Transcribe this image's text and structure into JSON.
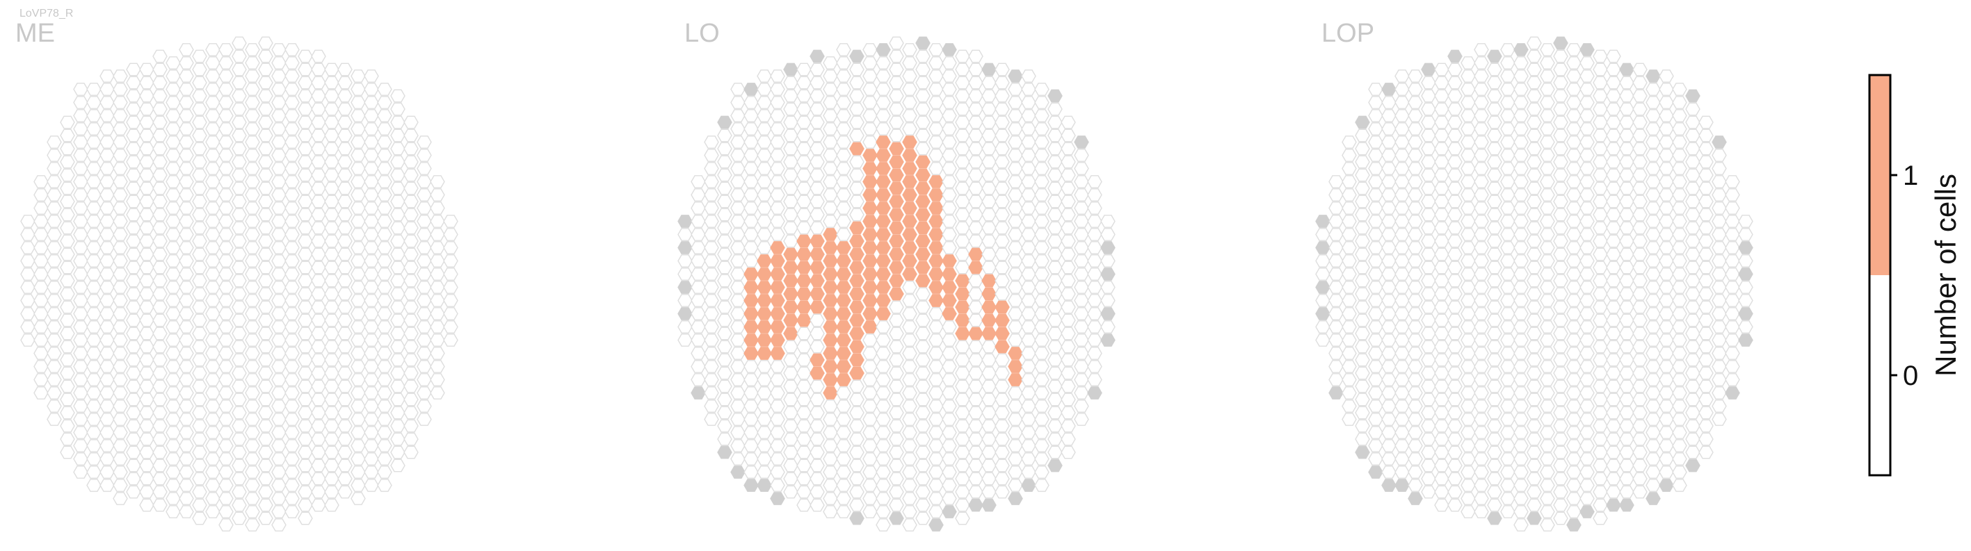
{
  "chart_data": {
    "type": "heatmap",
    "layout": "hexagonal-columns",
    "cell_type": "LoVP78_R",
    "panels": [
      {
        "name": "ME",
        "columns_profile": [
          10,
          17,
          22,
          26,
          30,
          31,
          32,
          33,
          33,
          34,
          35,
          35,
          36,
          36,
          36,
          37,
          37,
          37,
          37,
          37,
          36,
          36,
          35,
          34,
          33,
          33,
          32,
          31,
          29,
          26,
          22,
          17,
          10
        ],
        "max_valued_columns": [],
        "boundary_columns": []
      },
      {
        "name": "LO",
        "columns_profile": [
          10,
          17,
          22,
          26,
          30,
          31,
          32,
          33,
          33,
          34,
          35,
          35,
          36,
          36,
          36,
          37,
          37,
          37,
          37,
          37,
          36,
          36,
          35,
          34,
          33,
          33,
          32,
          31,
          29,
          26,
          22,
          17,
          10
        ],
        "max_valued_columns": [
          [
            5,
            14
          ],
          [
            5,
            15
          ],
          [
            5,
            16
          ],
          [
            5,
            17
          ],
          [
            5,
            18
          ],
          [
            5,
            19
          ],
          [
            5,
            20
          ],
          [
            6,
            14
          ],
          [
            6,
            15
          ],
          [
            6,
            16
          ],
          [
            6,
            17
          ],
          [
            6,
            18
          ],
          [
            6,
            19
          ],
          [
            6,
            20
          ],
          [
            6,
            21
          ],
          [
            7,
            13
          ],
          [
            7,
            14
          ],
          [
            7,
            15
          ],
          [
            7,
            16
          ],
          [
            7,
            17
          ],
          [
            7,
            18
          ],
          [
            7,
            19
          ],
          [
            7,
            20
          ],
          [
            7,
            21
          ],
          [
            8,
            14
          ],
          [
            8,
            15
          ],
          [
            8,
            16
          ],
          [
            8,
            17
          ],
          [
            8,
            18
          ],
          [
            8,
            19
          ],
          [
            8,
            20
          ],
          [
            9,
            13
          ],
          [
            9,
            14
          ],
          [
            9,
            15
          ],
          [
            9,
            16
          ],
          [
            9,
            17
          ],
          [
            9,
            18
          ],
          [
            9,
            19
          ],
          [
            10,
            14
          ],
          [
            10,
            15
          ],
          [
            10,
            16
          ],
          [
            10,
            17
          ],
          [
            10,
            18
          ],
          [
            10,
            19
          ],
          [
            10,
            23
          ],
          [
            10,
            24
          ],
          [
            11,
            13
          ],
          [
            11,
            14
          ],
          [
            11,
            15
          ],
          [
            11,
            16
          ],
          [
            11,
            17
          ],
          [
            11,
            18
          ],
          [
            11,
            19
          ],
          [
            11,
            20
          ],
          [
            11,
            21
          ],
          [
            11,
            22
          ],
          [
            11,
            23
          ],
          [
            11,
            24
          ],
          [
            11,
            25
          ],
          [
            12,
            15
          ],
          [
            12,
            16
          ],
          [
            12,
            17
          ],
          [
            12,
            18
          ],
          [
            12,
            19
          ],
          [
            12,
            20
          ],
          [
            12,
            21
          ],
          [
            12,
            22
          ],
          [
            12,
            23
          ],
          [
            12,
            24
          ],
          [
            12,
            25
          ],
          [
            13,
            7
          ],
          [
            13,
            13
          ],
          [
            13,
            14
          ],
          [
            13,
            15
          ],
          [
            13,
            16
          ],
          [
            13,
            17
          ],
          [
            13,
            18
          ],
          [
            13,
            19
          ],
          [
            13,
            20
          ],
          [
            13,
            21
          ],
          [
            13,
            22
          ],
          [
            13,
            23
          ],
          [
            13,
            24
          ],
          [
            14,
            8
          ],
          [
            14,
            9
          ],
          [
            14,
            10
          ],
          [
            14,
            11
          ],
          [
            14,
            12
          ],
          [
            14,
            13
          ],
          [
            14,
            14
          ],
          [
            14,
            15
          ],
          [
            14,
            16
          ],
          [
            14,
            17
          ],
          [
            14,
            18
          ],
          [
            14,
            19
          ],
          [
            14,
            20
          ],
          [
            14,
            21
          ],
          [
            15,
            7
          ],
          [
            15,
            8
          ],
          [
            15,
            9
          ],
          [
            15,
            10
          ],
          [
            15,
            11
          ],
          [
            15,
            12
          ],
          [
            15,
            13
          ],
          [
            15,
            14
          ],
          [
            15,
            15
          ],
          [
            15,
            16
          ],
          [
            15,
            17
          ],
          [
            15,
            18
          ],
          [
            15,
            19
          ],
          [
            15,
            20
          ],
          [
            16,
            8
          ],
          [
            16,
            9
          ],
          [
            16,
            10
          ],
          [
            16,
            11
          ],
          [
            16,
            12
          ],
          [
            16,
            13
          ],
          [
            16,
            14
          ],
          [
            16,
            15
          ],
          [
            16,
            16
          ],
          [
            16,
            17
          ],
          [
            16,
            18
          ],
          [
            16,
            19
          ],
          [
            17,
            7
          ],
          [
            17,
            8
          ],
          [
            17,
            9
          ],
          [
            17,
            10
          ],
          [
            17,
            11
          ],
          [
            17,
            12
          ],
          [
            17,
            13
          ],
          [
            17,
            14
          ],
          [
            17,
            15
          ],
          [
            17,
            16
          ],
          [
            17,
            17
          ],
          [
            18,
            9
          ],
          [
            18,
            10
          ],
          [
            18,
            11
          ],
          [
            18,
            12
          ],
          [
            18,
            13
          ],
          [
            18,
            14
          ],
          [
            18,
            15
          ],
          [
            18,
            16
          ],
          [
            18,
            17
          ],
          [
            18,
            18
          ],
          [
            19,
            10
          ],
          [
            19,
            11
          ],
          [
            19,
            12
          ],
          [
            19,
            13
          ],
          [
            19,
            14
          ],
          [
            19,
            15
          ],
          [
            19,
            16
          ],
          [
            19,
            17
          ],
          [
            19,
            18
          ],
          [
            19,
            19
          ],
          [
            20,
            16
          ],
          [
            20,
            17
          ],
          [
            20,
            18
          ],
          [
            20,
            19
          ],
          [
            20,
            20
          ],
          [
            21,
            17
          ],
          [
            21,
            18
          ],
          [
            21,
            19
          ],
          [
            21,
            20
          ],
          [
            21,
            21
          ],
          [
            22,
            15
          ],
          [
            22,
            16
          ],
          [
            22,
            21
          ],
          [
            23,
            16
          ],
          [
            23,
            17
          ],
          [
            23,
            18
          ],
          [
            23,
            19
          ],
          [
            23,
            20
          ],
          [
            24,
            18
          ],
          [
            24,
            19
          ],
          [
            24,
            20
          ],
          [
            24,
            21
          ],
          [
            25,
            21
          ],
          [
            25,
            22
          ],
          [
            25,
            23
          ]
        ],
        "boundary_columns": "perimeter-partial"
      },
      {
        "name": "LOP",
        "columns_profile": [
          10,
          17,
          22,
          26,
          30,
          31,
          32,
          33,
          33,
          34,
          35,
          35,
          36,
          36,
          36,
          37,
          37,
          37,
          37,
          37,
          36,
          36,
          35,
          34,
          33,
          33,
          32,
          31,
          29,
          26,
          22,
          17,
          10
        ],
        "max_valued_columns": [],
        "boundary_columns": "perimeter-partial"
      }
    ],
    "colorbar": {
      "label": "Number of cells",
      "ticks": [
        0,
        1
      ],
      "range": [
        -0.5,
        1.5
      ],
      "segments": [
        {
          "from": -0.5,
          "to": 0.5,
          "color": "#ffffff"
        },
        {
          "from": 0.5,
          "to": 1.5,
          "color": "#f7ab8a"
        }
      ]
    },
    "colors": {
      "empty_fill": "#ffffff",
      "empty_stroke": "#dedede",
      "max_fill": "#f7ab8a",
      "boundary_fill": "#cfcfcf"
    }
  }
}
